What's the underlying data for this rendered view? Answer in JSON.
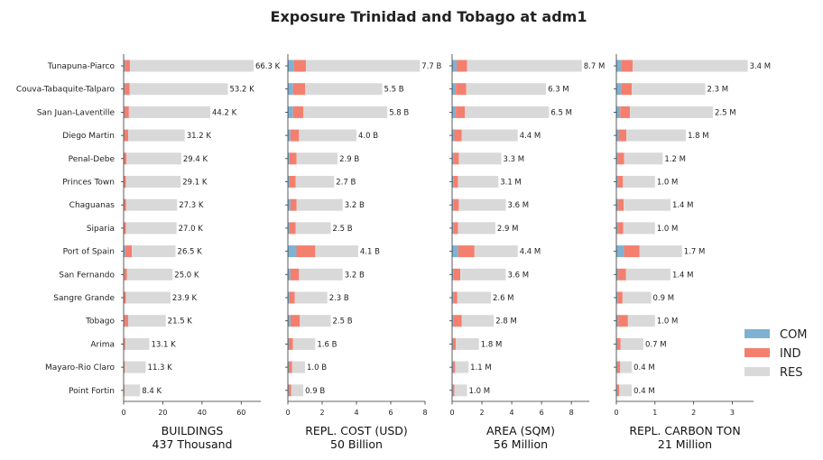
{
  "chart_data": {
    "type": "bar",
    "title": "Exposure Trinidad and Tobago at adm1",
    "orientation": "horizontal",
    "stacked": true,
    "categories": [
      "Tunapuna-Piarco",
      "Couva-Tabaquite-Talparo",
      "San Juan-Laventille",
      "Diego Martin",
      "Penal-Debe",
      "Princes Town",
      "Chaguanas",
      "Siparia",
      "Port of Spain",
      "San Fernando",
      "Sangre Grande",
      "Tobago",
      "Arima",
      "Mayaro-Rio Claro",
      "Point Fortin"
    ],
    "legend": {
      "position": "right",
      "entries": [
        "COM",
        "IND",
        "RES"
      ]
    },
    "colors": {
      "COM": "#7fb2d2",
      "IND": "#f47f6e",
      "RES": "#d9d9d9"
    },
    "grid": false,
    "panels": [
      {
        "xlabel": "BUILDINGS",
        "subtitle": "437 Thousand",
        "xlim": [
          0,
          70
        ],
        "xticks": [
          0,
          20,
          40,
          60
        ],
        "tick_labels": [
          "0",
          "20",
          "40",
          "60"
        ],
        "series": [
          {
            "name": "COM",
            "values": [
              0.6,
              0.5,
              0.4,
              0.3,
              0.2,
              0.2,
              0.2,
              0.2,
              0.8,
              0.3,
              0.2,
              0.3,
              0.2,
              0.1,
              0.1
            ]
          },
          {
            "name": "IND",
            "values": [
              2.6,
              2.6,
              2.3,
              2.0,
              1.3,
              1.0,
              1.1,
              1.0,
              3.4,
              1.4,
              1.0,
              2.0,
              0.6,
              0.5,
              0.3
            ]
          },
          {
            "name": "RES",
            "values": [
              63.1,
              50.1,
              41.5,
              28.9,
              27.9,
              27.9,
              26.0,
              25.8,
              22.3,
              23.3,
              22.7,
              19.2,
              12.3,
              10.7,
              8.0
            ]
          }
        ],
        "labels": [
          "66.3 K",
          "53.2 K",
          "44.2 K",
          "31.2 K",
          "29.4 K",
          "29.1 K",
          "27.3 K",
          "27.0 K",
          "26.5 K",
          "25.0 K",
          "23.9 K",
          "21.5 K",
          "13.1 K",
          "11.3 K",
          "8.4 K"
        ]
      },
      {
        "xlabel": "REPL. COST (USD)",
        "subtitle": "50 Billion",
        "xlim": [
          0,
          8
        ],
        "xticks": [
          0,
          2,
          4,
          6,
          8
        ],
        "tick_labels": [
          "0",
          "2",
          "4",
          "6",
          "8"
        ],
        "series": [
          {
            "name": "COM",
            "values": [
              0.35,
              0.3,
              0.3,
              0.15,
              0.1,
              0.1,
              0.15,
              0.1,
              0.5,
              0.15,
              0.1,
              0.15,
              0.05,
              0.05,
              0.05
            ]
          },
          {
            "name": "IND",
            "values": [
              0.7,
              0.7,
              0.6,
              0.5,
              0.4,
              0.35,
              0.35,
              0.35,
              1.1,
              0.5,
              0.3,
              0.55,
              0.25,
              0.2,
              0.15
            ]
          },
          {
            "name": "RES",
            "values": [
              6.65,
              4.5,
              4.9,
              3.35,
              2.4,
              2.25,
              2.7,
              2.05,
              2.5,
              2.55,
              1.9,
              1.8,
              1.3,
              0.75,
              0.7
            ]
          }
        ],
        "labels": [
          "7.7 B",
          "5.5 B",
          "5.8 B",
          "4.0 B",
          "2.9 B",
          "2.7 B",
          "3.2 B",
          "2.5 B",
          "4.1 B",
          "3.2 B",
          "2.3 B",
          "2.5 B",
          "1.6 B",
          "1.0 B",
          "0.9 B"
        ]
      },
      {
        "xlabel": "AREA (SQM)",
        "subtitle": "56 Million",
        "xlim": [
          0,
          9.2
        ],
        "xticks": [
          0,
          2,
          4,
          6,
          8
        ],
        "tick_labels": [
          "0",
          "2",
          "4",
          "6",
          "8"
        ],
        "series": [
          {
            "name": "COM",
            "values": [
              0.3,
              0.25,
              0.25,
              0.15,
              0.1,
              0.1,
              0.1,
              0.1,
              0.4,
              0.1,
              0.1,
              0.1,
              0.05,
              0.05,
              0.05
            ]
          },
          {
            "name": "IND",
            "values": [
              0.7,
              0.7,
              0.6,
              0.5,
              0.35,
              0.3,
              0.35,
              0.3,
              1.1,
              0.45,
              0.25,
              0.55,
              0.2,
              0.15,
              0.1
            ]
          },
          {
            "name": "RES",
            "values": [
              7.7,
              5.35,
              5.65,
              3.75,
              2.85,
              2.7,
              3.15,
              2.5,
              2.9,
              3.05,
              2.25,
              2.15,
              1.55,
              0.9,
              0.85
            ]
          }
        ],
        "labels": [
          "8.7 M",
          "6.3 M",
          "6.5 M",
          "4.4 M",
          "3.3 M",
          "3.1 M",
          "3.6 M",
          "2.9 M",
          "4.4 M",
          "3.6 M",
          "2.6 M",
          "2.8 M",
          "1.8 M",
          "1.1 M",
          "1.0 M"
        ]
      },
      {
        "xlabel": "REPL. CARBON TON",
        "subtitle": "21 Million",
        "xlim": [
          0,
          3.55
        ],
        "xticks": [
          0,
          1,
          2,
          3
        ],
        "tick_labels": [
          "0",
          "1",
          "2",
          "3"
        ],
        "series": [
          {
            "name": "COM",
            "values": [
              0.12,
              0.12,
              0.1,
              0.06,
              0.04,
              0.04,
              0.05,
              0.04,
              0.2,
              0.05,
              0.04,
              0.05,
              0.02,
              0.02,
              0.02
            ]
          },
          {
            "name": "IND",
            "values": [
              0.3,
              0.28,
              0.25,
              0.2,
              0.16,
              0.13,
              0.14,
              0.14,
              0.4,
              0.2,
              0.12,
              0.25,
              0.09,
              0.08,
              0.05
            ]
          },
          {
            "name": "RES",
            "values": [
              2.98,
              1.9,
              2.15,
              1.54,
              1.0,
              0.83,
              1.21,
              0.82,
              1.1,
              1.15,
              0.74,
              0.7,
              0.59,
              0.3,
              0.33
            ]
          }
        ],
        "labels": [
          "3.4 M",
          "2.3 M",
          "2.5 M",
          "1.8 M",
          "1.2 M",
          "1.0 M",
          "1.4 M",
          "1.0 M",
          "1.7 M",
          "1.4 M",
          "0.9 M",
          "1.0 M",
          "0.7 M",
          "0.4 M",
          "0.4 M"
        ]
      }
    ]
  }
}
